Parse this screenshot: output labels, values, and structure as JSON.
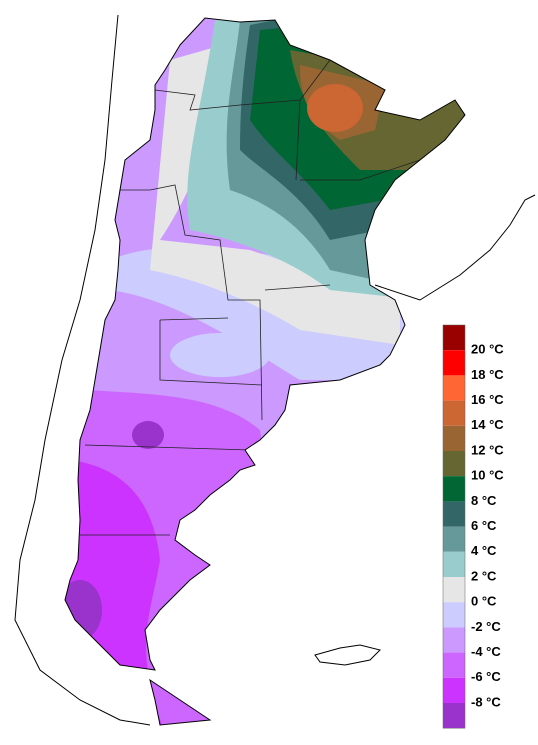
{
  "legend": {
    "colors": [
      "#990000",
      "#ff0000",
      "#ff6633",
      "#cc6633",
      "#996633",
      "#666633",
      "#006633",
      "#336666",
      "#669999",
      "#99cccc",
      "#e6e6e6",
      "#ccccff",
      "#cc99ff",
      "#cc66ff",
      "#cc33ff",
      "#9933cc"
    ],
    "labels": [
      "20 °C",
      "18 °C",
      "16 °C",
      "14 °C",
      "12 °C",
      "10 °C",
      "8 °C",
      "6 °C",
      "4 °C",
      "2 °C",
      "0 °C",
      "-2 °C",
      "-4 °C",
      "-6 °C",
      "-8 °C"
    ]
  }
}
